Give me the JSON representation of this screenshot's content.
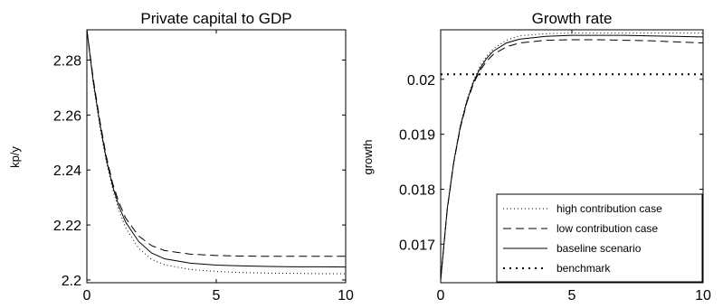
{
  "chart_data": [
    {
      "type": "line",
      "title": "Private capital to GDP",
      "xlabel": "",
      "ylabel": "kp/y",
      "xlim": [
        0,
        10
      ],
      "ylim": [
        2.199,
        2.291
      ],
      "xticks": [
        0,
        5,
        10
      ],
      "yticks": [
        2.2,
        2.22,
        2.24,
        2.26,
        2.28
      ],
      "ytick_labels": [
        "2.2",
        "2.22",
        "2.24",
        "2.26",
        "2.28"
      ],
      "grid": false,
      "series": [
        {
          "name": "high contribution case",
          "style": "dotted",
          "x": [
            0,
            0.25,
            0.5,
            0.75,
            1,
            1.25,
            1.5,
            2,
            2.5,
            3,
            4,
            5,
            6,
            7,
            8,
            9,
            10
          ],
          "y": [
            2.291,
            2.271,
            2.256,
            2.243,
            2.233,
            2.225,
            2.219,
            2.2115,
            2.2075,
            2.2055,
            2.2038,
            2.2031,
            2.2027,
            2.2025,
            2.2024,
            2.2023,
            2.2023
          ]
        },
        {
          "name": "low contribution case",
          "style": "dashed",
          "x": [
            0,
            0.25,
            0.5,
            0.75,
            1,
            1.25,
            1.5,
            2,
            2.5,
            3,
            4,
            5,
            6,
            7,
            8,
            9,
            10
          ],
          "y": [
            2.291,
            2.273,
            2.258,
            2.245,
            2.235,
            2.228,
            2.2225,
            2.216,
            2.2125,
            2.2107,
            2.2094,
            2.2089,
            2.2087,
            2.2086,
            2.2086,
            2.2086,
            2.2086
          ]
        },
        {
          "name": "baseline scenario",
          "style": "solid",
          "x": [
            0,
            0.25,
            0.5,
            0.75,
            1,
            1.25,
            1.5,
            2,
            2.5,
            3,
            4,
            5,
            6,
            7,
            8,
            9,
            10
          ],
          "y": [
            2.291,
            2.272,
            2.257,
            2.244,
            2.234,
            2.2265,
            2.221,
            2.214,
            2.2098,
            2.2077,
            2.2061,
            2.2054,
            2.2051,
            2.2049,
            2.2048,
            2.2048,
            2.2047
          ]
        }
      ]
    },
    {
      "type": "line",
      "title": "Growth rate",
      "xlabel": "",
      "ylabel": "growth",
      "xlim": [
        0,
        10
      ],
      "ylim": [
        0.0163,
        0.0209
      ],
      "xticks": [
        0,
        5,
        10
      ],
      "yticks": [
        0.017,
        0.018,
        0.019,
        0.02
      ],
      "ytick_labels": [
        "0.017",
        "0.018",
        "0.019",
        "0.02"
      ],
      "grid": false,
      "legend": {
        "position": "bottom-right",
        "entries": [
          {
            "label": "high contribution case",
            "style": "dotted"
          },
          {
            "label": "low contribution case",
            "style": "dashed"
          },
          {
            "label": "baseline scenario",
            "style": "solid"
          },
          {
            "label": "benchmark",
            "style": "heavy-dotted"
          }
        ]
      },
      "series": [
        {
          "name": "high contribution case",
          "style": "dotted",
          "x": [
            0,
            0.25,
            0.5,
            0.75,
            1,
            1.25,
            1.5,
            1.75,
            2,
            2.5,
            3,
            4,
            5,
            6,
            7,
            8,
            9,
            10
          ],
          "y": [
            0.01635,
            0.01765,
            0.01852,
            0.01917,
            0.01963,
            0.01998,
            0.02024,
            0.02042,
            0.02055,
            0.02071,
            0.02079,
            0.02083,
            0.02084,
            0.02084,
            0.02084,
            0.02084,
            0.02084,
            0.02084
          ]
        },
        {
          "name": "low contribution case",
          "style": "dashed",
          "x": [
            0,
            0.25,
            0.5,
            0.75,
            1,
            1.25,
            1.5,
            1.75,
            2,
            2.5,
            3,
            4,
            5,
            6,
            7,
            8,
            9,
            10
          ],
          "y": [
            0.01635,
            0.01763,
            0.01849,
            0.01912,
            0.01958,
            0.01992,
            0.02016,
            0.02033,
            0.02045,
            0.02059,
            0.02066,
            0.02071,
            0.02072,
            0.02072,
            0.02071,
            0.0207,
            0.02068,
            0.02066
          ]
        },
        {
          "name": "baseline scenario",
          "style": "solid",
          "x": [
            0,
            0.25,
            0.5,
            0.75,
            1,
            1.25,
            1.5,
            1.75,
            2,
            2.5,
            3,
            4,
            5,
            6,
            7,
            8,
            9,
            10
          ],
          "y": [
            0.01635,
            0.01764,
            0.0185,
            0.01914,
            0.0196,
            0.01995,
            0.0202,
            0.02038,
            0.02051,
            0.02066,
            0.02073,
            0.02078,
            0.0208,
            0.0208,
            0.0208,
            0.02079,
            0.02078,
            0.02077
          ]
        },
        {
          "name": "benchmark",
          "style": "heavy-dotted",
          "x": [
            0,
            10
          ],
          "y": [
            0.02009,
            0.02009
          ]
        }
      ]
    }
  ]
}
